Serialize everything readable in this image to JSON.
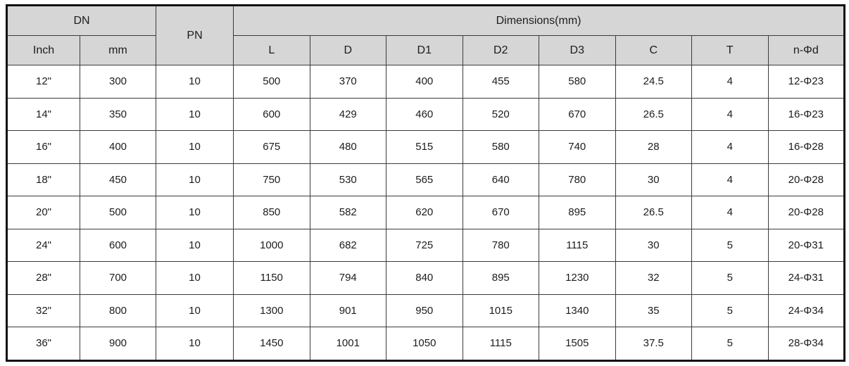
{
  "colors": {
    "header_bg": "#d6d6d6",
    "border": "#3a3a3a",
    "outer_border": "#111111",
    "text": "#1c1c1c"
  },
  "table": {
    "header": {
      "dn_label": "DN",
      "pn_label": "PN",
      "dimensions_label": "Dimensions(mm)",
      "sub_columns": [
        "Inch",
        "mm",
        "L",
        "D",
        "D1",
        "D2",
        "D3",
        "C",
        "T",
        "n-Φd"
      ]
    },
    "rows": [
      [
        "12\"",
        "300",
        "10",
        "500",
        "370",
        "400",
        "455",
        "580",
        "24.5",
        "4",
        "12-Φ23"
      ],
      [
        "14\"",
        "350",
        "10",
        "600",
        "429",
        "460",
        "520",
        "670",
        "26.5",
        "4",
        "16-Φ23"
      ],
      [
        "16\"",
        "400",
        "10",
        "675",
        "480",
        "515",
        "580",
        "740",
        "28",
        "4",
        "16-Φ28"
      ],
      [
        "18\"",
        "450",
        "10",
        "750",
        "530",
        "565",
        "640",
        "780",
        "30",
        "4",
        "20-Φ28"
      ],
      [
        "20\"",
        "500",
        "10",
        "850",
        "582",
        "620",
        "670",
        "895",
        "26.5",
        "4",
        "20-Φ28"
      ],
      [
        "24\"",
        "600",
        "10",
        "1000",
        "682",
        "725",
        "780",
        "1115",
        "30",
        "5",
        "20-Φ31"
      ],
      [
        "28\"",
        "700",
        "10",
        "1150",
        "794",
        "840",
        "895",
        "1230",
        "32",
        "5",
        "24-Φ31"
      ],
      [
        "32\"",
        "800",
        "10",
        "1300",
        "901",
        "950",
        "1015",
        "1340",
        "35",
        "5",
        "24-Φ34"
      ],
      [
        "36\"",
        "900",
        "10",
        "1450",
        "1001",
        "1050",
        "1115",
        "1505",
        "37.5",
        "5",
        "28-Φ34"
      ]
    ]
  }
}
